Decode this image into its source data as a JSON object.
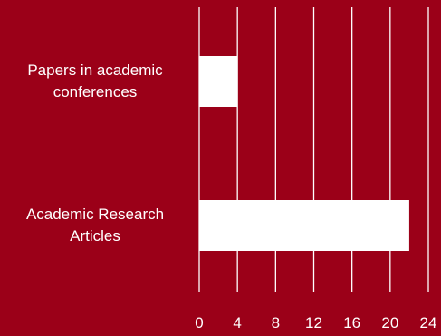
{
  "background": "#9b0018",
  "bar_color": "#ffffff",
  "grid_color": "#ffffff",
  "chart_data": {
    "type": "bar",
    "orientation": "horizontal",
    "categories": [
      [
        "Papers in academic",
        "conferences"
      ],
      [
        "Academic Research",
        "Articles"
      ]
    ],
    "values": [
      4,
      22
    ],
    "xlim": [
      0,
      24
    ],
    "x_ticks": [
      "0",
      "4",
      "8",
      "12",
      "16",
      "20",
      "24"
    ],
    "grid": true,
    "title": "",
    "xlabel": "",
    "ylabel": ""
  }
}
